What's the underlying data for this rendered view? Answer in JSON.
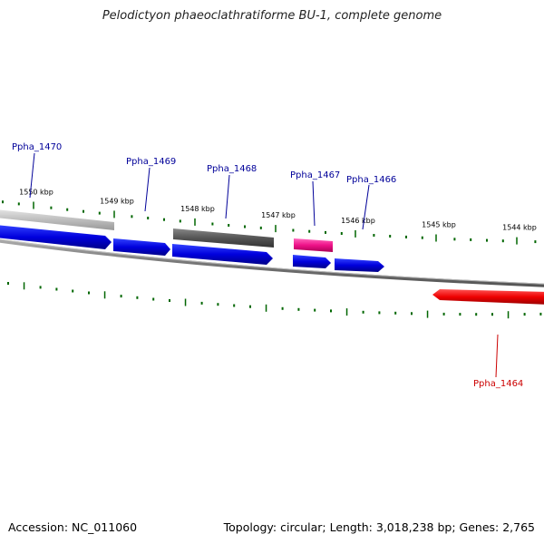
{
  "title": "Pelodictyon phaeoclathratiforme BU-1, complete genome",
  "accession_text": "Accession: NC_011060",
  "summary_text": "Topology: circular; Length: 3,018,238 bp; Genes: 2,765",
  "colors": {
    "forward_gene": "#0000dd",
    "reverse_gene": "#ee0000",
    "pink_gene": "#ee1188",
    "gray_dark": "#555555",
    "gray_light": "#bbbbbb",
    "backbone": "#808080",
    "ticks": "#006600",
    "label_blue": "#000099",
    "label_red": "#cc0000"
  },
  "ticks": [
    {
      "label": "1550 kbp"
    },
    {
      "label": "1549 kbp"
    },
    {
      "label": "1548 kbp"
    },
    {
      "label": "1547 kbp"
    },
    {
      "label": "1546 kbp"
    },
    {
      "label": "1545 kbp"
    },
    {
      "label": "1544 kbp"
    }
  ],
  "genes": [
    {
      "name": "Ppha_1470",
      "color": "blue"
    },
    {
      "name": "Ppha_1469",
      "color": "blue"
    },
    {
      "name": "Ppha_1468",
      "color": "blue"
    },
    {
      "name": "Ppha_1467",
      "color": "blue"
    },
    {
      "name": "Ppha_1466",
      "color": "blue"
    },
    {
      "name": "Ppha_1464",
      "color": "red"
    }
  ]
}
